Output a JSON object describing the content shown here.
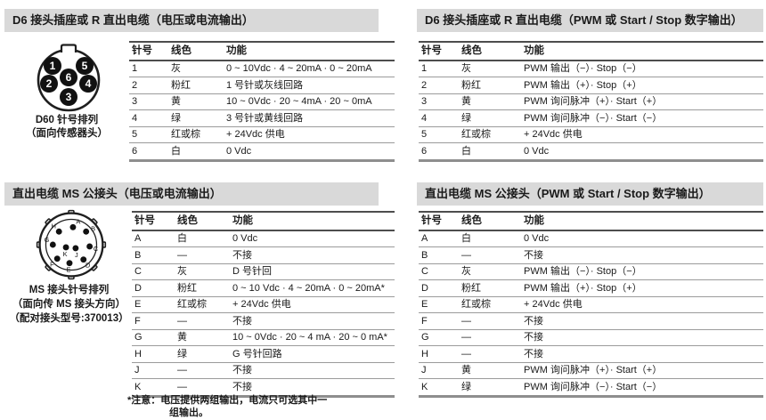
{
  "sections": [
    {
      "title": "D6 接头插座或 R 直出电缆（电压或电流输出）",
      "diagram_caption": [
        "D60 针号排列",
        "（面向传感器头）"
      ],
      "table": {
        "headers": [
          "针号",
          "线色",
          "功能"
        ],
        "rows": [
          [
            "1",
            "灰",
            "0 ~ 10Vdc · 4 ~ 20mA · 0 ~ 20mA"
          ],
          [
            "2",
            "粉红",
            "1 号针或灰线回路"
          ],
          [
            "3",
            "黄",
            "10 ~ 0Vdc · 20 ~ 4mA · 20 ~ 0mA"
          ],
          [
            "4",
            "绿",
            "3 号针或黄线回路"
          ],
          [
            "5",
            "红或棕",
            "+ 24Vdc 供电"
          ],
          [
            "6",
            "白",
            "0 Vdc"
          ]
        ]
      }
    },
    {
      "title": "D6 接头插座或 R 直出电缆（PWM 或 Start / Stop 数字输出）",
      "table": {
        "headers": [
          "针号",
          "线色",
          "功能"
        ],
        "rows": [
          [
            "1",
            "灰",
            "PWM 输出（−）· Stop（−）"
          ],
          [
            "2",
            "粉红",
            "PWM 输出（+）· Stop（+）"
          ],
          [
            "3",
            "黄",
            "PWM 询问脉冲（+）· Start（+）"
          ],
          [
            "4",
            "绿",
            "PWM 询问脉冲（−）· Start（−）"
          ],
          [
            "5",
            "红或棕",
            "+ 24Vdc 供电"
          ],
          [
            "6",
            "白",
            "0 Vdc"
          ]
        ]
      }
    },
    {
      "title": "直出电缆 MS 公接头（电压或电流输出）",
      "diagram_caption": [
        "MS 接头针号排列",
        "（面向传 MS 接头方向）",
        "（配对接头型号:370013）"
      ],
      "table": {
        "headers": [
          "针号",
          "线色",
          "功能"
        ],
        "rows": [
          [
            "A",
            "白",
            "0 Vdc"
          ],
          [
            "B",
            "—",
            "不接"
          ],
          [
            "C",
            "灰",
            "D 号针回"
          ],
          [
            "D",
            "粉红",
            "0 ~ 10 Vdc · 4 ~ 20mA · 0 ~ 20mA*"
          ],
          [
            "E",
            "红或棕",
            "+ 24Vdc 供电"
          ],
          [
            "F",
            "—",
            "不接"
          ],
          [
            "G",
            "黄",
            "10 ~ 0Vdc · 20 ~ 4 mA · 20 ~ 0 mA*"
          ],
          [
            "H",
            "绿",
            "G 号针回路"
          ],
          [
            "J",
            "—",
            "不接"
          ],
          [
            "K",
            "—",
            "不接"
          ]
        ]
      },
      "footnote": [
        "*注意：电压提供两组输出，电流只可选其中一",
        "组输出。"
      ]
    },
    {
      "title": "直出电缆 MS 公接头（PWM 或 Start / Stop 数字输出）",
      "table": {
        "headers": [
          "针号",
          "线色",
          "功能"
        ],
        "rows": [
          [
            "A",
            "白",
            "0 Vdc"
          ],
          [
            "B",
            "—",
            "不接"
          ],
          [
            "C",
            "灰",
            "PWM 输出（−）· Stop（−）"
          ],
          [
            "D",
            "粉红",
            "PWM 输出（+）· Stop（+）"
          ],
          [
            "E",
            "红或棕",
            "+ 24Vdc 供电"
          ],
          [
            "F",
            "—",
            "不接"
          ],
          [
            "G",
            "—",
            "不接"
          ],
          [
            "H",
            "—",
            "不接"
          ],
          [
            "J",
            "黄",
            "PWM 询问脉冲（+）· Start（+）"
          ],
          [
            "K",
            "绿",
            "PWM 询问脉冲（−）· Start（−）"
          ]
        ]
      }
    }
  ],
  "diagrams": {
    "d6_pins": [
      "1",
      "2",
      "3",
      "4",
      "5",
      "6"
    ],
    "ms_pins": [
      "A",
      "B",
      "C",
      "D",
      "E",
      "F",
      "G",
      "H",
      "J",
      "K"
    ]
  },
  "colors": {
    "header_bar_bg": "#d9d9d9",
    "text": "#1a1a1a",
    "rule_dark": "#4d4d4d",
    "rule_light": "#9b9b9b"
  }
}
